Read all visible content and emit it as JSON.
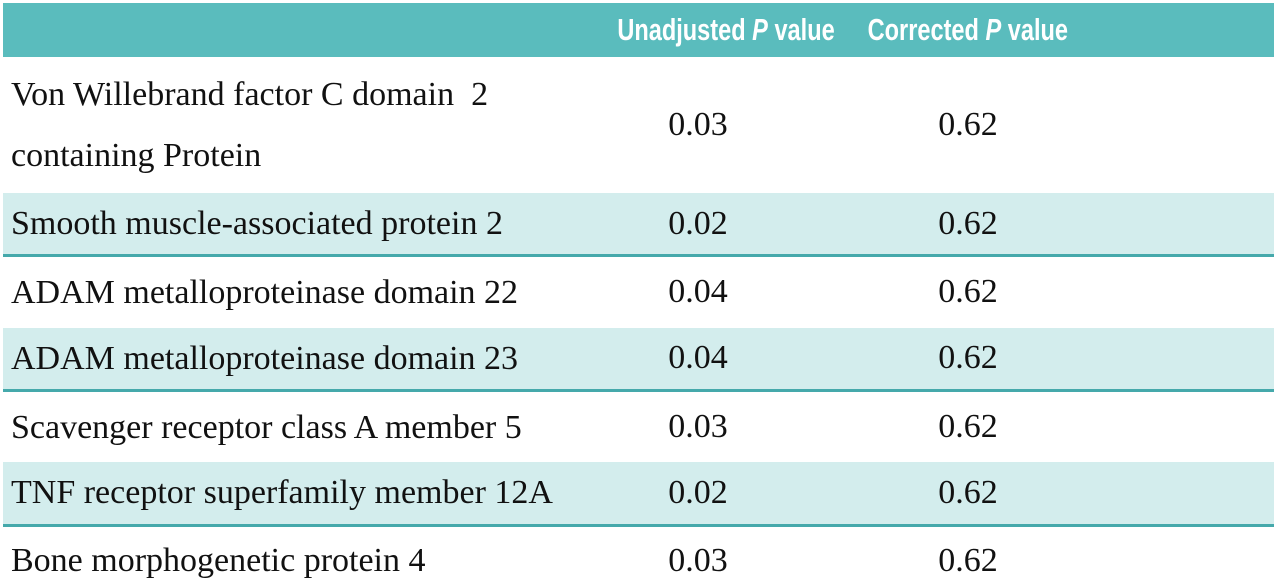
{
  "colors": {
    "header_bg": "#5abcbd",
    "row_shaded_bg": "#d3eded",
    "shaded_border": "#45a9ab",
    "bottom_rule": "#3d3d3d",
    "header_text": "#ffffff",
    "text_color": "#111111"
  },
  "columns": [
    {
      "prefix": "",
      "italic": "",
      "suffix": ""
    },
    {
      "prefix": "Unadjusted",
      "italic": "P",
      "suffix": "value"
    },
    {
      "prefix": "Corrected",
      "italic": "P",
      "suffix": "value"
    }
  ],
  "rows": [
    {
      "name": "Von Willebrand factor C domain  2\ncontaining Protein",
      "unadjusted": "0.03",
      "corrected": "0.62",
      "shaded": false
    },
    {
      "name": "Smooth muscle-associated protein 2",
      "unadjusted": "0.02",
      "corrected": "0.62",
      "shaded": true
    },
    {
      "name": "ADAM metalloproteinase domain 22",
      "unadjusted": "0.04",
      "corrected": "0.62",
      "shaded": false
    },
    {
      "name": "ADAM metalloproteinase domain 23",
      "unadjusted": "0.04",
      "corrected": "0.62",
      "shaded": true
    },
    {
      "name": "Scavenger receptor class A member 5",
      "unadjusted": "0.03",
      "corrected": "0.62",
      "shaded": false
    },
    {
      "name": "TNF receptor superfamily member 12A",
      "unadjusted": "0.02",
      "corrected": "0.62",
      "shaded": true
    },
    {
      "name": "Bone morphogenetic protein 4",
      "unadjusted": "0.03",
      "corrected": "0.62",
      "shaded": false
    }
  ]
}
